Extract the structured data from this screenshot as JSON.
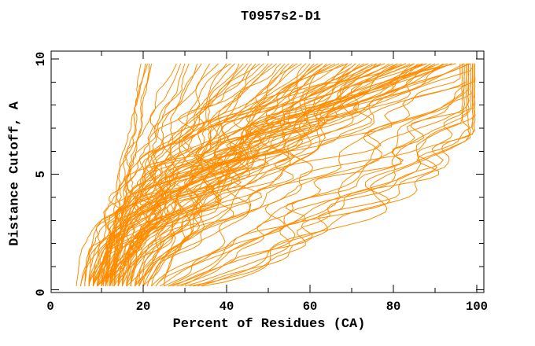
{
  "chart_data": {
    "type": "line",
    "title": "T0957s2-D1",
    "xlabel": "Percent of Residues (CA)",
    "ylabel": "Distance Cutoff, A",
    "xlim": [
      0,
      100
    ],
    "ylim": [
      0,
      10
    ],
    "x_ticks_major": [
      0,
      20,
      40,
      60,
      80,
      100
    ],
    "x_ticks_minor": [
      10,
      30,
      50,
      70,
      90
    ],
    "y_ticks_major": [
      0,
      5,
      10
    ],
    "y_ticks_minor": [
      1,
      2,
      3,
      4,
      6,
      7,
      8,
      9
    ],
    "grid": false,
    "legend": "none",
    "line_color": "#ff8c00",
    "axis_color": "#000000",
    "background_color": "#ffffff",
    "curve_y_start": 0.15,
    "curve_y_end": 9.8,
    "series_format": "each curve = [percent_at_cutoff_0, percent_at_cutoff_9.8, shape_exponent, saturation_fraction(optional)] for x(t)=start+(end-start)*min(1,t/sat)^shape, t = normalized cutoff",
    "series": [
      [
        12,
        20.5,
        1.15
      ],
      [
        13,
        21.5,
        1.05
      ],
      [
        11.5,
        19.5,
        1.25
      ],
      [
        12.5,
        22,
        1.1
      ],
      [
        10.5,
        21,
        1.3
      ],
      [
        9,
        29,
        1.3
      ],
      [
        10,
        31,
        1.2
      ],
      [
        12,
        33,
        1.35
      ],
      [
        8,
        28,
        1.5
      ],
      [
        11,
        34,
        1.25
      ],
      [
        13,
        30,
        1.4
      ],
      [
        10,
        36,
        1.45
      ],
      [
        7,
        38,
        1.4
      ],
      [
        9,
        40,
        1.2
      ],
      [
        11,
        42,
        1.5
      ],
      [
        8,
        44,
        1.1
      ],
      [
        13,
        45,
        1.6
      ],
      [
        10,
        46,
        1.3
      ],
      [
        6,
        48,
        1.7
      ],
      [
        12,
        50,
        1.2
      ],
      [
        14,
        52,
        1.45
      ],
      [
        9,
        54,
        1.0
      ],
      [
        15,
        55,
        1.55
      ],
      [
        8,
        56,
        1.25
      ],
      [
        11,
        58,
        1.7
      ],
      [
        13,
        60,
        1.35
      ],
      [
        10,
        41,
        1.9
      ],
      [
        16,
        47,
        1.15
      ],
      [
        7,
        53,
        1.85
      ],
      [
        12,
        57,
        1.5
      ],
      [
        18,
        59,
        1.05
      ],
      [
        9,
        49,
        1.6
      ],
      [
        14,
        43,
        1.3
      ],
      [
        5,
        51,
        1.45
      ],
      [
        8,
        62,
        1.5
      ],
      [
        12,
        63,
        1.2
      ],
      [
        15,
        65,
        1.7
      ],
      [
        10,
        66,
        1.35
      ],
      [
        7,
        68,
        1.9
      ],
      [
        13,
        69,
        1.15
      ],
      [
        17,
        70,
        1.5
      ],
      [
        9,
        71,
        1.65
      ],
      [
        11,
        72,
        1.3
      ],
      [
        14,
        74,
        1.8
      ],
      [
        19,
        75,
        1.25
      ],
      [
        8,
        76,
        1.55
      ],
      [
        12,
        77,
        1.4
      ],
      [
        16,
        78,
        1.95
      ],
      [
        10,
        79,
        1.2
      ],
      [
        13,
        80,
        1.6
      ],
      [
        20,
        64,
        1.1
      ],
      [
        6,
        67,
        2.1
      ],
      [
        18,
        73,
        1.45
      ],
      [
        9,
        77,
        1.75
      ],
      [
        15,
        61,
        1.3
      ],
      [
        11,
        69,
        2.0
      ],
      [
        22,
        76,
        1.35
      ],
      [
        7,
        74,
        1.6
      ],
      [
        4,
        63,
        1.8
      ],
      [
        16,
        71,
        1.0
      ],
      [
        10,
        81,
        1.5
      ],
      [
        14,
        82,
        1.8
      ],
      [
        8,
        83,
        1.35
      ],
      [
        17,
        84,
        2.0
      ],
      [
        12,
        85,
        1.6
      ],
      [
        9,
        86,
        1.25
      ],
      [
        20,
        87,
        1.7
      ],
      [
        11,
        88,
        1.45
      ],
      [
        15,
        89,
        1.9
      ],
      [
        7,
        90,
        1.55
      ],
      [
        13,
        91,
        2.1
      ],
      [
        18,
        92,
        1.3
      ],
      [
        10,
        93,
        1.75
      ],
      [
        16,
        94,
        1.5
      ],
      [
        12,
        95,
        2.2
      ],
      [
        23,
        85,
        1.2
      ],
      [
        8,
        88,
        1.95
      ],
      [
        14,
        90,
        1.4
      ],
      [
        25,
        92,
        1.6
      ],
      [
        11,
        83,
        2.3
      ],
      [
        19,
        94,
        1.85
      ],
      [
        9,
        81,
        1.15
      ],
      [
        5,
        87,
        1.7
      ],
      [
        21,
        89,
        1.5
      ],
      [
        28,
        99,
        0.85,
        0.68
      ],
      [
        30,
        98.5,
        0.8,
        0.72
      ],
      [
        26,
        99.5,
        0.9,
        0.75
      ],
      [
        32,
        99,
        0.75,
        0.7
      ],
      [
        24,
        98,
        0.95,
        0.8
      ],
      [
        29,
        97.5,
        0.85,
        0.78
      ],
      [
        33,
        99.5,
        0.8,
        0.66
      ],
      [
        27,
        98.5,
        0.9,
        0.85
      ],
      [
        31,
        97,
        0.7,
        0.74
      ],
      [
        25,
        99,
        1.0,
        0.82
      ],
      [
        22,
        98,
        1.1,
        0.88
      ],
      [
        20,
        99,
        1.2,
        0.9
      ],
      [
        18,
        97.5,
        1.3,
        0.95
      ],
      [
        16,
        98.5,
        1.5,
        1
      ],
      [
        21,
        99.5,
        1.4,
        0.92
      ],
      [
        23,
        96.5,
        1.05,
        0.8
      ],
      [
        19,
        96,
        1.35,
        0.93
      ],
      [
        34,
        98,
        0.72,
        0.72
      ],
      [
        15,
        97,
        1.6,
        1
      ],
      [
        12,
        98,
        1.8,
        1
      ],
      [
        17,
        99,
        1.55,
        0.97
      ],
      [
        26,
        97,
        0.95,
        0.86
      ]
    ]
  }
}
